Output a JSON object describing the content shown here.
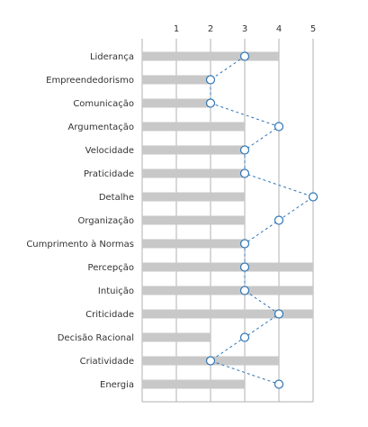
{
  "chart_data": {
    "type": "bar",
    "categories": [
      "Liderança",
      "Empreendedorismo",
      "Comunicação",
      "Argumentação",
      "Velocidade",
      "Praticidade",
      "Detalhe",
      "Organização",
      "Cumprimento à Normas",
      "Percepção",
      "Intuição",
      "Criticidade",
      "Decisão Racional",
      "Criatividade",
      "Energia"
    ],
    "series": [
      {
        "type": "bar",
        "values": [
          4,
          2,
          2,
          3,
          3,
          3,
          3,
          3,
          3,
          5,
          5,
          5,
          2,
          4,
          3
        ]
      },
      {
        "type": "line",
        "values": [
          3,
          2,
          2,
          4,
          3,
          3,
          5,
          4,
          3,
          3,
          3,
          4,
          3,
          2,
          4
        ]
      }
    ],
    "xlim": [
      0,
      5
    ],
    "xticks": [
      "1",
      "2",
      "3",
      "4",
      "5"
    ],
    "orientation": "horizontal",
    "grid": true,
    "colors": {
      "bar": "#c8c8c8",
      "line": "#2e75b6",
      "marker_fill": "#ffffff",
      "grid": "#b0b0b0"
    }
  }
}
